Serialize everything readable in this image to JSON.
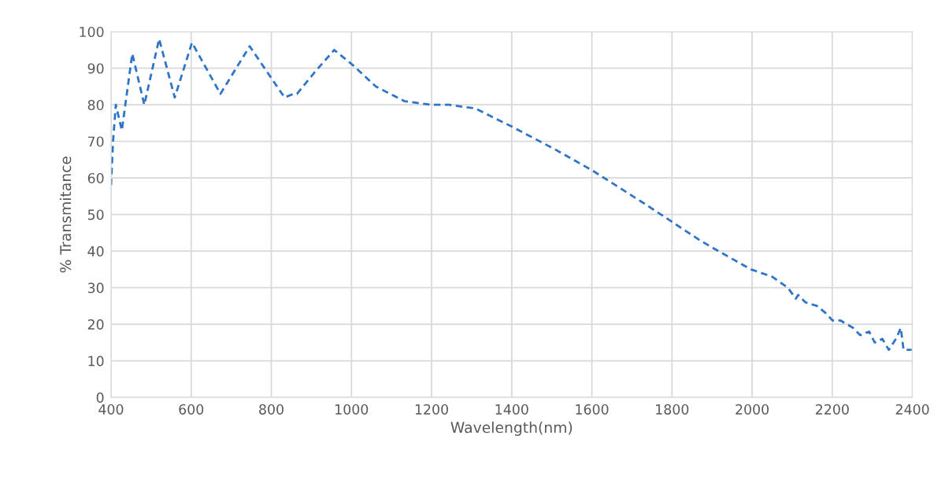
{
  "chart_data": {
    "type": "line",
    "xlabel": "Wavelength(nm)",
    "ylabel": "% Transmitance",
    "line_style": "dashed",
    "marker": "none",
    "grid": true,
    "legend": false,
    "xlim": [
      400,
      2400
    ],
    "xticks": [
      400,
      600,
      800,
      1000,
      1200,
      1400,
      1600,
      1800,
      2000,
      2200,
      2400
    ],
    "ylim": [
      0,
      100
    ],
    "yticks": [
      0,
      10,
      20,
      30,
      40,
      50,
      60,
      70,
      80,
      90,
      100
    ],
    "x": [
      400,
      405,
      412,
      427,
      453,
      483,
      520,
      559,
      602,
      673,
      746,
      833,
      856,
      864,
      909,
      957,
      1002,
      1061,
      1132,
      1198,
      1244,
      1309,
      1401,
      1505,
      1602,
      1731,
      1800,
      1869,
      1900,
      1997,
      2050,
      2089,
      2109,
      2115,
      2133,
      2162,
      2184,
      2201,
      2221,
      2252,
      2270,
      2292,
      2306,
      2325,
      2341,
      2359,
      2371,
      2378,
      2398
    ],
    "series": [
      {
        "color": "#2e75c8",
        "values": [
          58,
          70,
          80,
          73,
          94,
          80,
          98,
          82,
          97,
          83,
          96,
          82,
          83,
          83,
          89,
          95,
          91,
          85,
          81,
          80,
          80,
          79,
          74,
          68,
          62,
          53,
          48,
          43,
          41,
          35,
          33,
          30,
          27,
          28,
          26,
          25,
          23,
          21,
          21,
          19,
          17,
          18,
          15,
          16,
          13,
          16,
          19,
          13,
          13
        ]
      }
    ]
  }
}
